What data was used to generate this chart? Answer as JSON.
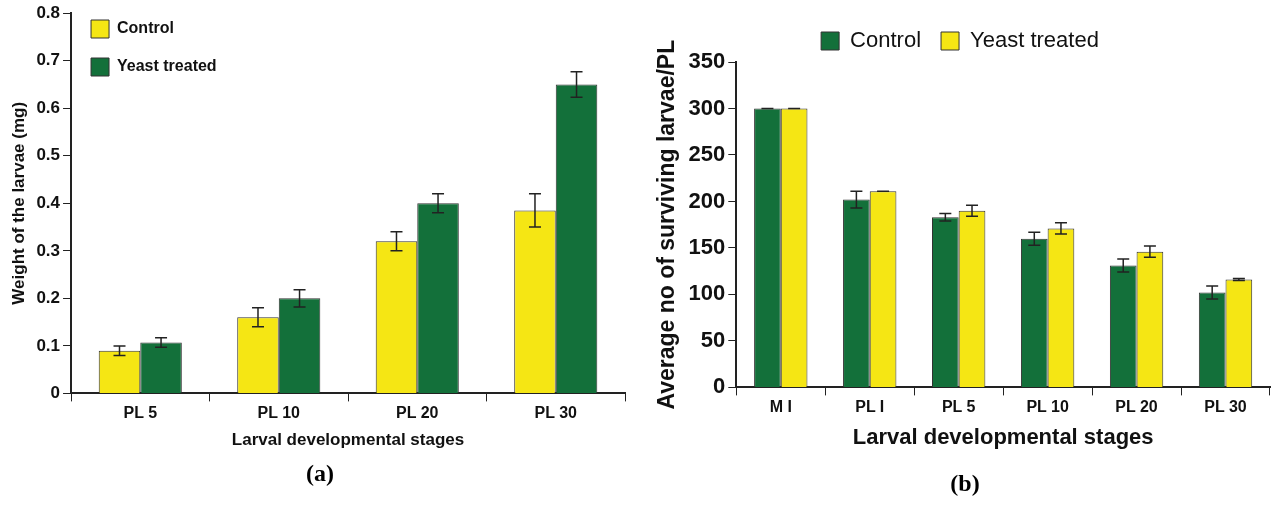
{
  "chart_data": [
    {
      "type": "bar",
      "xlabel": "Larval developmental stages",
      "ylabel": "Weight of the larvae (mg)",
      "categories": [
        "PL 5",
        "PL 10",
        "PL 20",
        "PL 30"
      ],
      "series": [
        {
          "name": "Control",
          "color": "#f5e614",
          "values": [
            0.09,
            0.16,
            0.32,
            0.385
          ],
          "errors": [
            0.01,
            0.02,
            0.02,
            0.035
          ]
        },
        {
          "name": "Yeast treated",
          "color": "#13703a",
          "values": [
            0.107,
            0.2,
            0.4,
            0.65
          ],
          "errors": [
            0.01,
            0.018,
            0.02,
            0.027
          ]
        }
      ],
      "ylim": [
        0,
        0.8
      ],
      "yticks": [
        0,
        0.1,
        0.2,
        0.3,
        0.4,
        0.5,
        0.6,
        0.7,
        0.8
      ],
      "legend": "top left",
      "annotations": [
        "(a)"
      ]
    },
    {
      "type": "bar",
      "xlabel": "Larval developmental stages",
      "ylabel": "Average no of surviving larvae/PL",
      "categories": [
        "M I",
        "PL I",
        "PL 5",
        "PL 10",
        "PL 20",
        "PL 30"
      ],
      "series": [
        {
          "name": "Control",
          "color": "#13703a",
          "values": [
            300,
            202,
            183,
            160,
            131,
            102
          ],
          "errors": [
            0,
            9,
            4,
            7,
            7,
            7
          ]
        },
        {
          "name": "Yeast treated",
          "color": "#f5e614",
          "values": [
            300,
            211,
            190,
            171,
            146,
            116
          ],
          "errors": [
            0,
            0,
            6,
            6,
            6,
            1
          ]
        }
      ],
      "ylim": [
        0,
        350
      ],
      "yticks": [
        0,
        50,
        100,
        150,
        200,
        250,
        300,
        350
      ],
      "legend": "top",
      "annotations": [
        "(b)"
      ]
    }
  ]
}
